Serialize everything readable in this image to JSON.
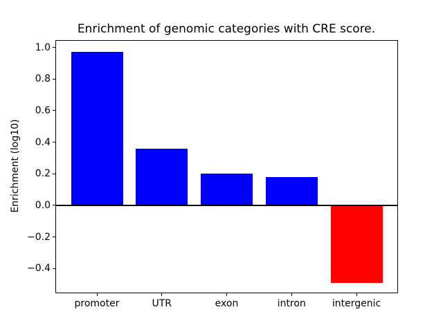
{
  "figure": {
    "background": "#ffffff"
  },
  "chart_data": {
    "type": "bar",
    "title": "Enrichment of genomic categories with CRE score.",
    "xlabel": "",
    "ylabel": "Enrichment (log10)",
    "categories": [
      "promoter",
      "UTR",
      "exon",
      "intron",
      "intergenic"
    ],
    "values": [
      0.97,
      0.36,
      0.2,
      0.18,
      -0.49
    ],
    "bar_colors": [
      "#0000ff",
      "#0000ff",
      "#0000ff",
      "#0000ff",
      "#ff0000"
    ],
    "positive_color": "#0000ff",
    "negative_color": "#ff0000",
    "ylim": [
      -0.556,
      1.046
    ],
    "yticks": [
      1.0,
      0.8,
      0.6,
      0.4,
      0.2,
      0.0,
      -0.2,
      -0.4
    ],
    "ytick_labels": [
      "1.0",
      "0.8",
      "0.6",
      "0.4",
      "0.2",
      "0.0",
      "−0.2",
      "−0.4"
    ],
    "baseline": 0,
    "zero_line_color": "#000000",
    "axis_color": "#000000",
    "grid": false,
    "legend": null
  }
}
